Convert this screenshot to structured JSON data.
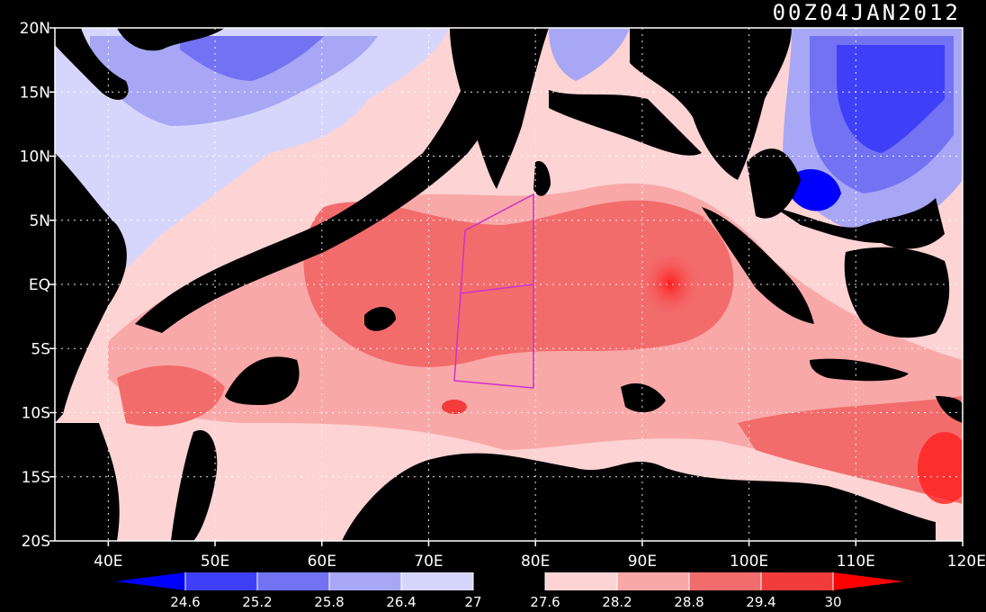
{
  "map": {
    "timestamp": "00Z04JAN2012",
    "lat_labels": [
      "20N",
      "15N",
      "10N",
      "5N",
      "EQ",
      "5S",
      "10S",
      "15S",
      "20S"
    ],
    "lon_labels": [
      "40E",
      "50E",
      "60E",
      "70E",
      "80E",
      "90E",
      "100E",
      "110E",
      "120E"
    ],
    "lon_range": [
      35,
      120
    ],
    "lat_range": [
      -20,
      20
    ],
    "grid": "dotted",
    "land_color": "#000000",
    "box_color": "#cc33cc"
  },
  "colorbar": {
    "levels": [
      "24.6",
      "25.2",
      "25.8",
      "26.4",
      "27",
      "27.6",
      "28.2",
      "28.8",
      "29.4",
      "30"
    ],
    "colors": [
      "#0000ff",
      "#3f3ff8",
      "#7272f2",
      "#a7a7f5",
      "#d6d6fc",
      "#000000",
      "#fdd3d3",
      "#f9a8a8",
      "#f26c6c",
      "#f23c3c",
      "#ff0000"
    ]
  }
}
